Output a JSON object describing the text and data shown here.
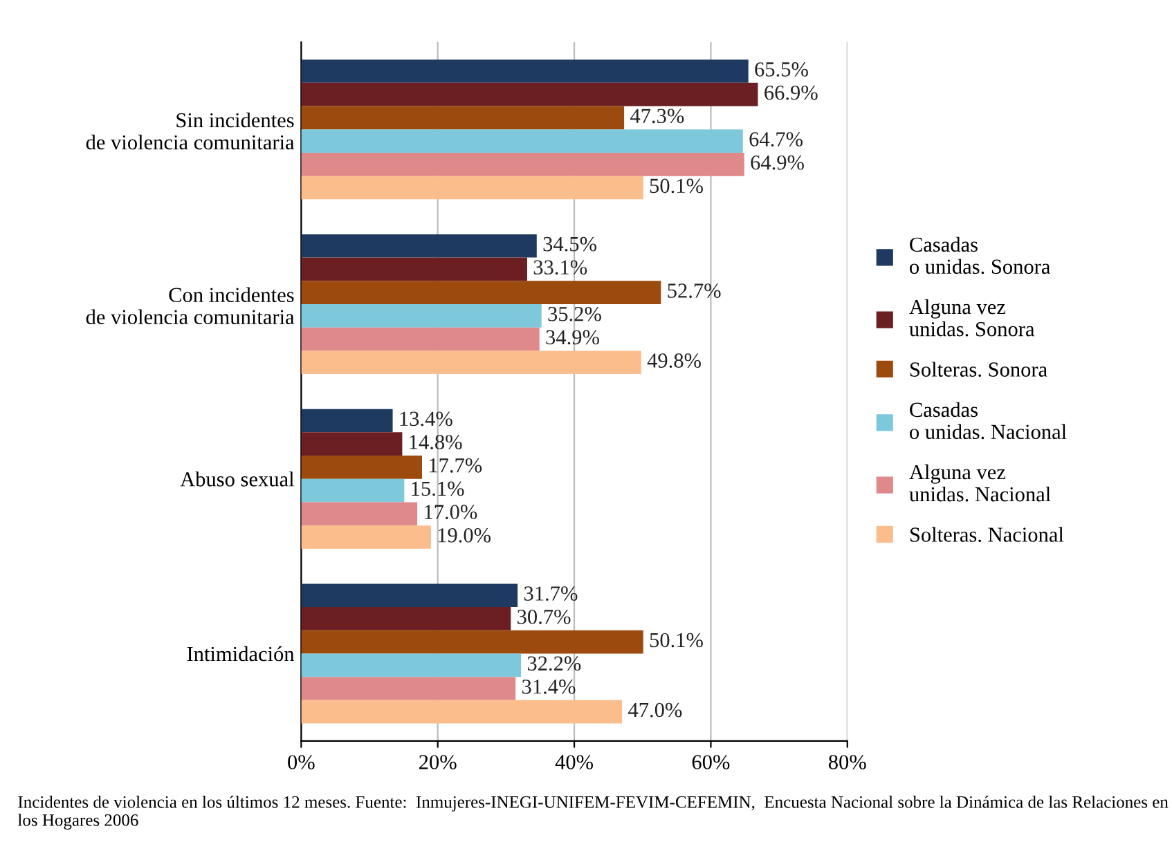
{
  "chart_data": {
    "type": "bar",
    "orientation": "horizontal",
    "categories": [
      "Sin incidentes\nde violencia comunitaria",
      "Con incidentes\nde violencia comunitaria",
      "Abuso sexual",
      "Intimidación"
    ],
    "series": [
      {
        "name": "Casadas\no unidas. Sonora",
        "color": "#1f3a60",
        "values": [
          65.5,
          34.5,
          13.4,
          31.7
        ],
        "value_labels": [
          "65.5%",
          "34.5%",
          "13.4%",
          "31.7%"
        ]
      },
      {
        "name": "Alguna vez\nunidas. Sonora",
        "color": "#6b1f22",
        "values": [
          66.9,
          33.1,
          14.8,
          30.7
        ],
        "value_labels": [
          "66.9%",
          "33.1%",
          "14.8%",
          "30.7%"
        ]
      },
      {
        "name": "Solteras. Sonora",
        "color": "#9c4a0e",
        "values": [
          47.3,
          52.7,
          17.7,
          50.1
        ],
        "value_labels": [
          "47.3%",
          "52.7%",
          "17.7%",
          "50.1%"
        ]
      },
      {
        "name": "Casadas\no unidas. Nacional",
        "color": "#7ec8dc",
        "values": [
          64.7,
          35.2,
          15.1,
          32.2
        ],
        "value_labels": [
          "64.7%",
          "35.2%",
          "15.1%",
          "32.2%"
        ]
      },
      {
        "name": "Alguna vez\nunidas. Nacional",
        "color": "#e0898a",
        "values": [
          64.9,
          34.9,
          17.0,
          31.4
        ],
        "value_labels": [
          "64.9%",
          "34.9%",
          "17.0%",
          "31.4%"
        ]
      },
      {
        "name": "Solteras. Nacional",
        "color": "#fbbd8c",
        "values": [
          50.1,
          49.8,
          19.0,
          47.0
        ],
        "value_labels": [
          "50.1%",
          "49.8%",
          "19.0%",
          "47.0%"
        ]
      }
    ],
    "xlim": [
      0,
      80
    ],
    "xticks": [
      {
        "value": 0,
        "label": "0%"
      },
      {
        "value": 20,
        "label": "20%"
      },
      {
        "value": 40,
        "label": "40%"
      },
      {
        "value": 60,
        "label": "60%"
      },
      {
        "value": 80,
        "label": "80%"
      }
    ],
    "grid": "x",
    "legend": "right",
    "annotations": [
      "Incidentes de violencia en los últimos 12 meses. Fuente:  Inmujeres-INEGI-UNIFEM-FEVIM-CEFEMIN,  Encuesta Nacional sobre la Dinámica de las Relaciones en los Hogares 2006"
    ]
  }
}
